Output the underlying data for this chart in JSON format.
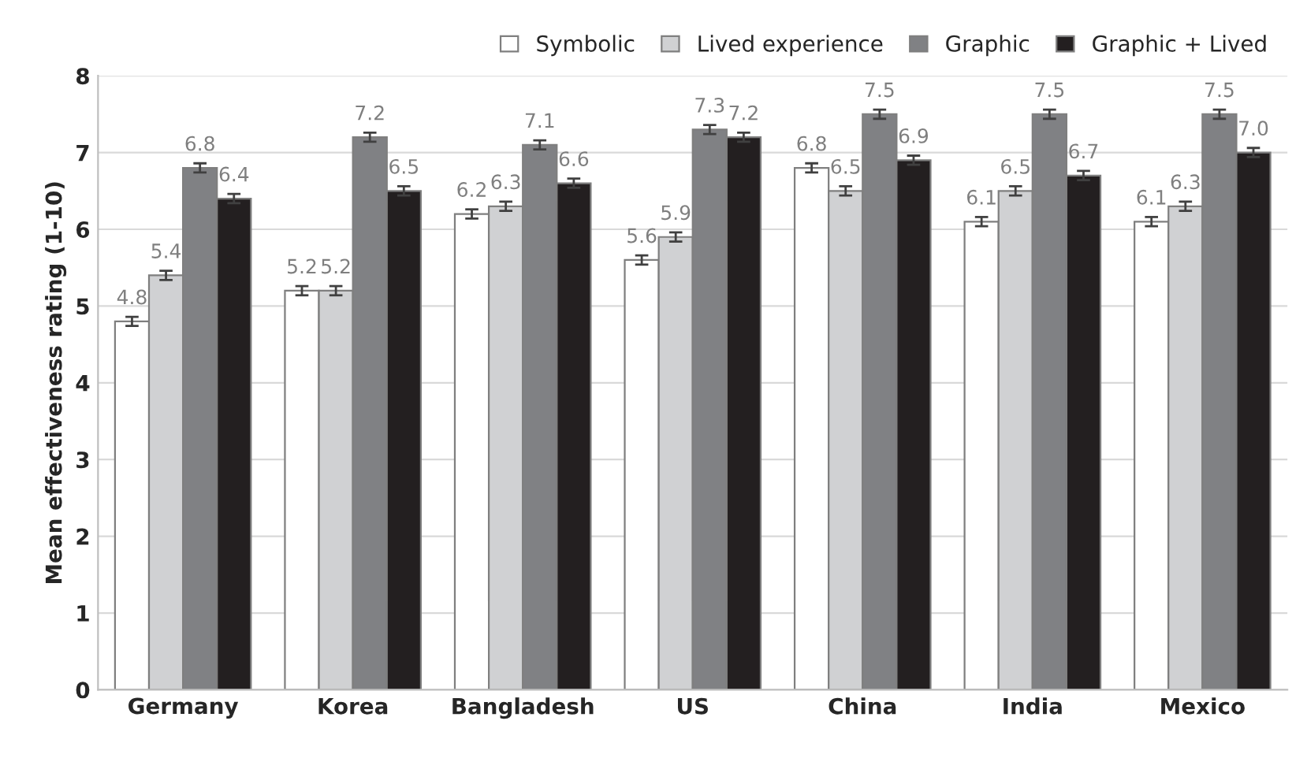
{
  "chart_data": {
    "type": "bar",
    "ylabel": "Mean effectiveness rating (1-10)",
    "categories": [
      "Germany",
      "Korea",
      "Bangladesh",
      "US",
      "China",
      "India",
      "Mexico"
    ],
    "series": [
      {
        "name": "Symbolic",
        "color": "#ffffff",
        "values": [
          4.8,
          5.2,
          6.2,
          5.6,
          6.8,
          6.1,
          6.1
        ],
        "value_labels": [
          "4.8",
          "5.2",
          "6.2",
          "5.6",
          "6.8",
          "6.1",
          "6.1"
        ],
        "errors": [
          0.06,
          0.06,
          0.06,
          0.06,
          0.06,
          0.06,
          0.06
        ]
      },
      {
        "name": "Lived experience",
        "color": "#d0d1d3",
        "values": [
          5.4,
          5.2,
          6.3,
          5.9,
          6.5,
          6.5,
          6.3
        ],
        "value_labels": [
          "5.4",
          "5.2",
          "6.3",
          "5.9",
          "6.5",
          "6.5",
          "6.3"
        ],
        "errors": [
          0.06,
          0.06,
          0.06,
          0.06,
          0.06,
          0.06,
          0.06
        ]
      },
      {
        "name": "Graphic",
        "color": "#808184",
        "values": [
          6.8,
          7.2,
          7.1,
          7.3,
          7.5,
          7.5,
          7.5
        ],
        "value_labels": [
          "6.8",
          "7.2",
          "7.1",
          "7.3",
          "7.5",
          "7.5",
          "7.5"
        ],
        "errors": [
          0.06,
          0.06,
          0.06,
          0.06,
          0.06,
          0.06,
          0.06
        ]
      },
      {
        "name": "Graphic + Lived",
        "color": "#231f20",
        "values": [
          6.4,
          6.5,
          6.6,
          7.2,
          6.9,
          6.7,
          7.0
        ],
        "value_labels": [
          "6.4",
          "6.5",
          "6.6",
          "7.2",
          "6.9",
          "6.7",
          "7.0"
        ],
        "errors": [
          0.06,
          0.06,
          0.06,
          0.06,
          0.06,
          0.06,
          0.06
        ]
      }
    ],
    "ylim": [
      0,
      8
    ],
    "yticks": [
      0,
      1,
      2,
      3,
      4,
      5,
      6,
      7,
      8
    ],
    "grid": "y",
    "legend": "top right"
  }
}
